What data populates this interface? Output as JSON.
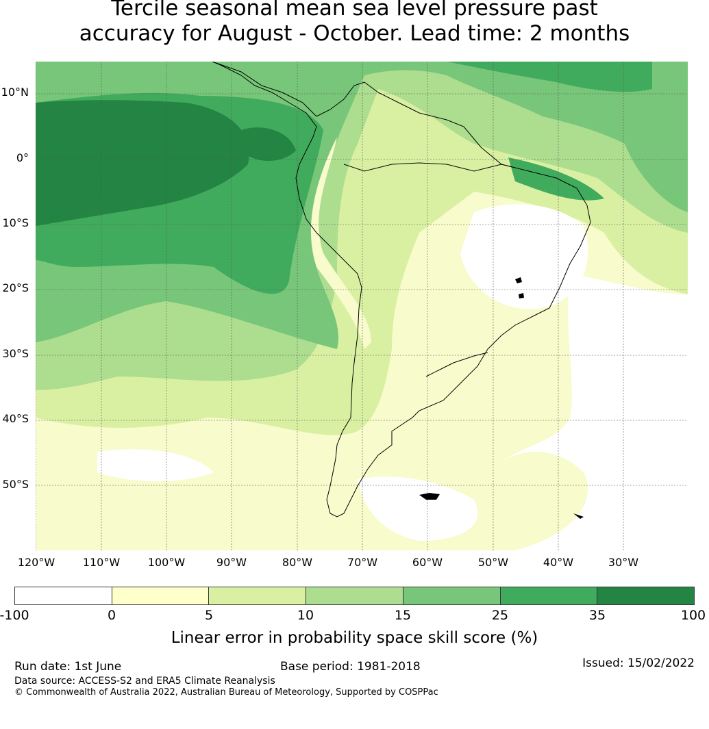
{
  "title_line1": "Tercile seasonal mean sea level pressure past",
  "title_line2": "accuracy for August - October. Lead time: 2 months",
  "map": {
    "region": "South America and surrounding oceans",
    "lat_labels": [
      "10°N",
      "0°",
      "10°S",
      "20°S",
      "30°S",
      "40°S",
      "50°S"
    ],
    "lon_labels": [
      "120°W",
      "110°W",
      "100°W",
      "90°W",
      "80°W",
      "70°W",
      "60°W",
      "50°W",
      "40°W",
      "30°W"
    ],
    "gridlines": "dotted"
  },
  "colorbar": {
    "colors": [
      "#ffffff",
      "#ffffcc",
      "#d9f0a3",
      "#addd8e",
      "#78c679",
      "#41ab5d",
      "#238443"
    ],
    "ticks": [
      "-100",
      "0",
      "5",
      "10",
      "15",
      "25",
      "35",
      "100"
    ],
    "label": "Linear error in probability space skill score (%)"
  },
  "footer": {
    "run_date": "Run date: 1st June",
    "base_period": "Base period: 1981-2018",
    "issued": "Issued: 15/02/2022",
    "data_source": "Data source: ACCESS-S2 and ERA5 Climate Reanalysis",
    "copyright": "© Commonwealth of Australia 2022, Australian Bureau of Meteorology, Supported by COSPPac"
  }
}
